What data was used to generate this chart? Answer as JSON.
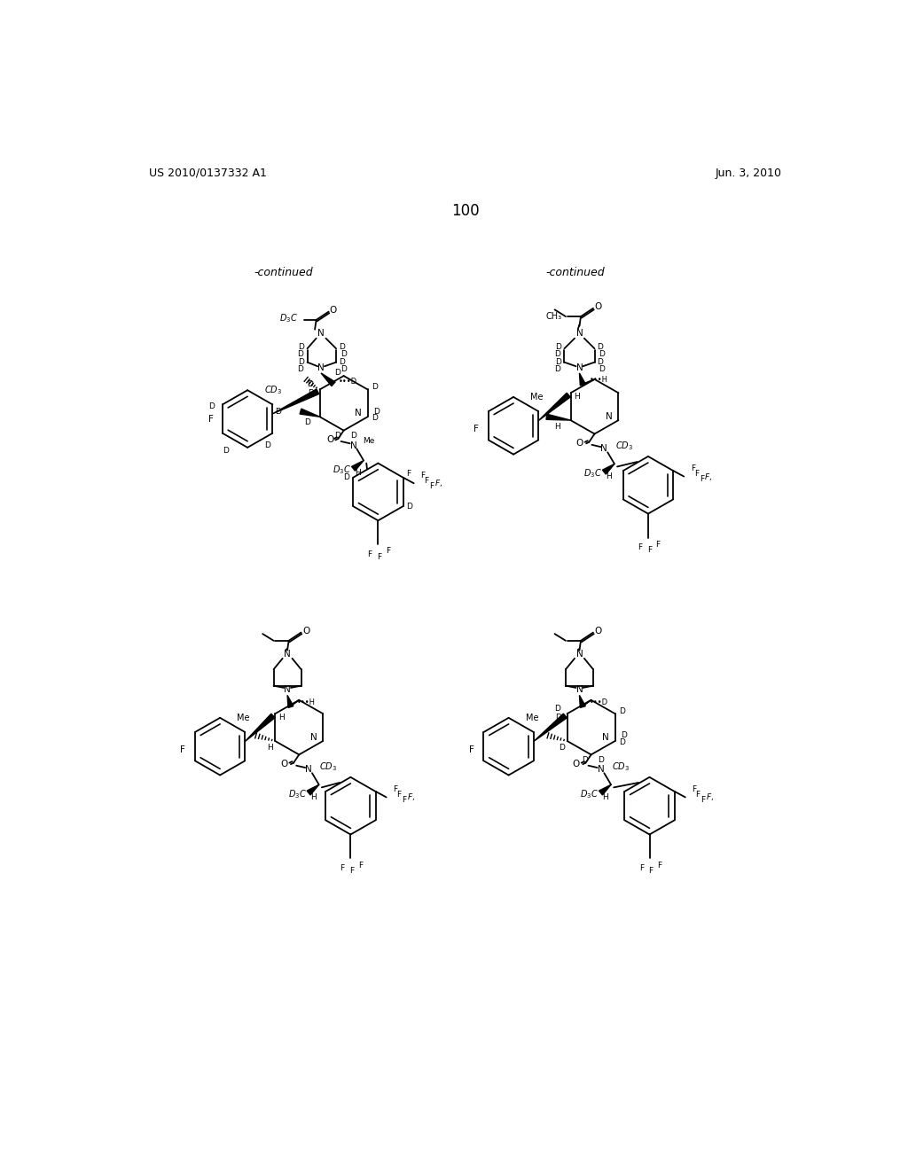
{
  "page_header_left": "US 2010/0137332 A1",
  "page_header_right": "Jun. 3, 2010",
  "page_number": "100",
  "continued_left": "-continued",
  "continued_right": "-continued",
  "background_color": "#ffffff"
}
